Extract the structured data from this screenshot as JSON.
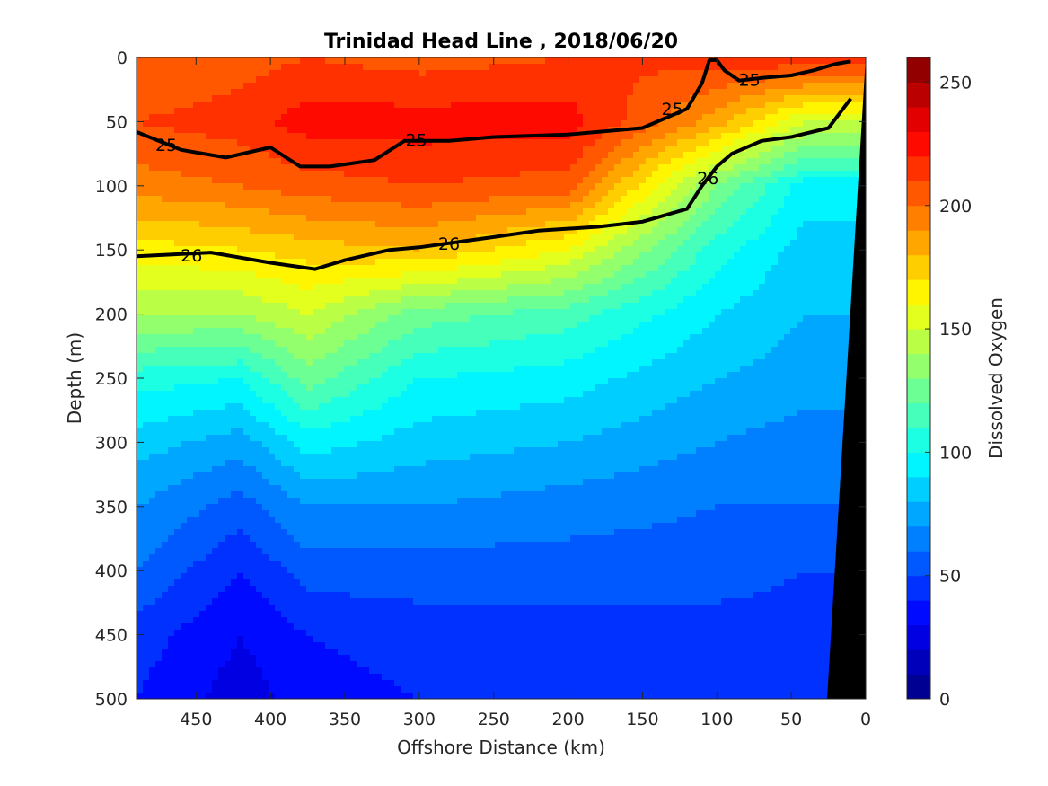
{
  "chart_data": {
    "type": "contourf",
    "title": "Trinidad Head Line , 2018/06/20",
    "xlabel": "Offshore Distance (km)",
    "ylabel": "Depth (m)",
    "xlim": [
      490,
      0
    ],
    "ylim": [
      0,
      500
    ],
    "x_ticks": [
      "450",
      "400",
      "350",
      "300",
      "250",
      "200",
      "150",
      "100",
      "50",
      "0"
    ],
    "x_tick_values": [
      450,
      400,
      350,
      300,
      250,
      200,
      150,
      100,
      50,
      0
    ],
    "y_ticks": [
      "0",
      "50",
      "100",
      "150",
      "200",
      "250",
      "300",
      "350",
      "400",
      "450",
      "500"
    ],
    "y_tick_values": [
      0,
      50,
      100,
      150,
      200,
      250,
      300,
      350,
      400,
      450,
      500
    ],
    "colorbar": {
      "label": "Dissolved Oxygen",
      "range": [
        0,
        260
      ],
      "ticks": [
        "0",
        "50",
        "100",
        "150",
        "200",
        "250"
      ],
      "tick_values": [
        0,
        50,
        100,
        150,
        200,
        250
      ],
      "levels": [
        0,
        10,
        20,
        30,
        40,
        50,
        60,
        70,
        80,
        90,
        100,
        110,
        120,
        130,
        140,
        150,
        160,
        170,
        180,
        190,
        200,
        210,
        220,
        230,
        240,
        250,
        260
      ],
      "colormap": "jet"
    },
    "oxygen_profiles": [
      {
        "x": 490,
        "depth": [
          0,
          50,
          100,
          150,
          200,
          250,
          300,
          350,
          400,
          450,
          500
        ],
        "value": [
          200,
          210,
          195,
          165,
          140,
          105,
          85,
          70,
          60,
          45,
          40
        ]
      },
      {
        "x": 420,
        "depth": [
          0,
          50,
          100,
          150,
          200,
          250,
          300,
          350,
          400,
          450,
          500
        ],
        "value": [
          205,
          215,
          200,
          170,
          140,
          100,
          75,
          55,
          40,
          30,
          25
        ]
      },
      {
        "x": 375,
        "depth": [
          0,
          50,
          100,
          150,
          200,
          250,
          300,
          350,
          400,
          450,
          500
        ],
        "value": [
          210,
          225,
          205,
          175,
          150,
          125,
          95,
          70,
          55,
          40,
          35
        ]
      },
      {
        "x": 300,
        "depth": [
          0,
          50,
          100,
          150,
          200,
          250,
          300,
          350,
          400,
          450,
          500
        ],
        "value": [
          205,
          225,
          210,
          180,
          125,
          100,
          85,
          70,
          55,
          45,
          40
        ]
      },
      {
        "x": 200,
        "depth": [
          0,
          50,
          100,
          150,
          200,
          250,
          300,
          350,
          400,
          450,
          500
        ],
        "value": [
          210,
          225,
          205,
          160,
          115,
          95,
          80,
          65,
          55,
          45,
          40
        ]
      },
      {
        "x": 100,
        "depth": [
          0,
          50,
          100,
          150,
          200,
          250,
          300,
          350,
          400,
          450,
          500
        ],
        "value": [
          215,
          185,
          130,
          105,
          90,
          80,
          70,
          60,
          55,
          45,
          40
        ]
      },
      {
        "x": 40,
        "depth": [
          0,
          50,
          100,
          150,
          200,
          250,
          300,
          350,
          400,
          450,
          500
        ],
        "value": [
          220,
          150,
          95,
          85,
          80,
          75,
          65,
          60,
          50,
          45,
          40
        ]
      }
    ],
    "isopycnals": [
      {
        "label": "25",
        "x": [
          490,
          460,
          430,
          400,
          380,
          360,
          330,
          310,
          280,
          250,
          200,
          150,
          120,
          110,
          105,
          100,
          95,
          85,
          70,
          50,
          35,
          20,
          10
        ],
        "depth": [
          58,
          72,
          78,
          70,
          85,
          85,
          80,
          65,
          65,
          62,
          60,
          55,
          40,
          20,
          2,
          2,
          10,
          18,
          16,
          14,
          10,
          5,
          3
        ]
      },
      {
        "label": "26",
        "x": [
          490,
          440,
          400,
          370,
          350,
          320,
          300,
          250,
          220,
          180,
          150,
          120,
          110,
          100,
          90,
          70,
          50,
          25,
          10
        ],
        "depth": [
          155,
          152,
          160,
          165,
          158,
          150,
          148,
          140,
          135,
          132,
          128,
          118,
          100,
          85,
          75,
          65,
          62,
          55,
          32
        ]
      }
    ],
    "contour_labels": [
      {
        "text": "25",
        "x": 470,
        "depth": 68
      },
      {
        "text": "25",
        "x": 302,
        "depth": 64
      },
      {
        "text": "25",
        "x": 130,
        "depth": 40
      },
      {
        "text": "25",
        "x": 78,
        "depth": 17
      },
      {
        "text": "26",
        "x": 453,
        "depth": 154
      },
      {
        "text": "26",
        "x": 280,
        "depth": 145
      },
      {
        "text": "26",
        "x": 106,
        "depth": 94
      }
    ],
    "grid": false,
    "legend": "colorbar-right"
  }
}
